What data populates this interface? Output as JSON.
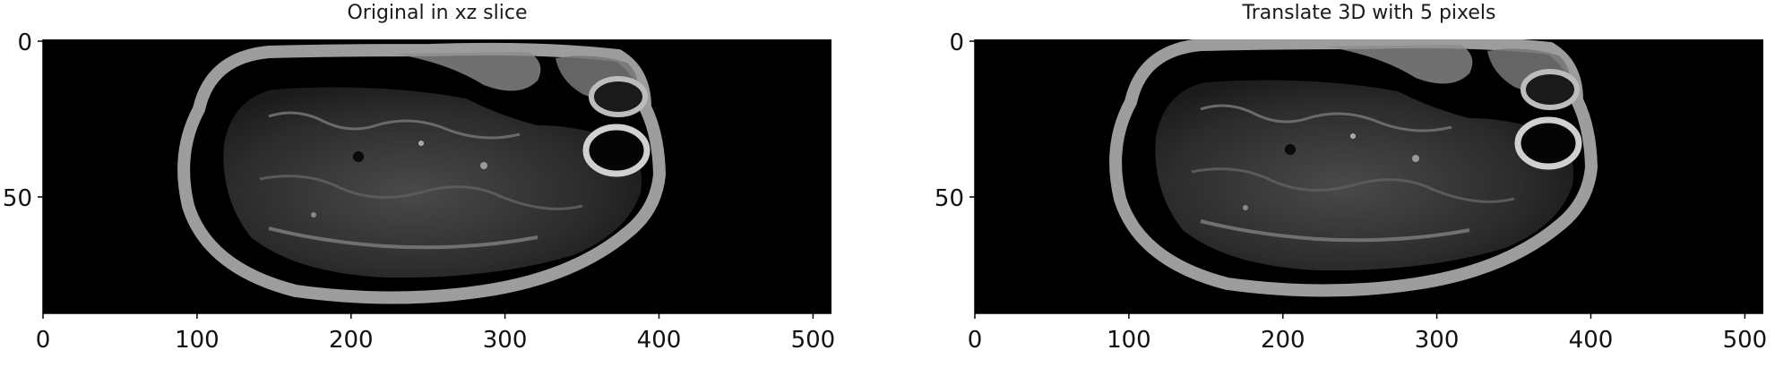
{
  "panels": [
    {
      "title": "Original in xz slice",
      "x_ticks": [
        "0",
        "100",
        "200",
        "300",
        "400",
        "500"
      ],
      "y_ticks": [
        "0",
        "50"
      ]
    },
    {
      "title": "Translate 3D with 5 pixels",
      "x_ticks": [
        "0",
        "100",
        "200",
        "300",
        "400",
        "500"
      ],
      "y_ticks": [
        "0",
        "50"
      ]
    }
  ],
  "image": {
    "x_range": [
      0,
      512
    ],
    "y_range": [
      0,
      88
    ],
    "colormap": "gray",
    "background_color": "#000000"
  }
}
